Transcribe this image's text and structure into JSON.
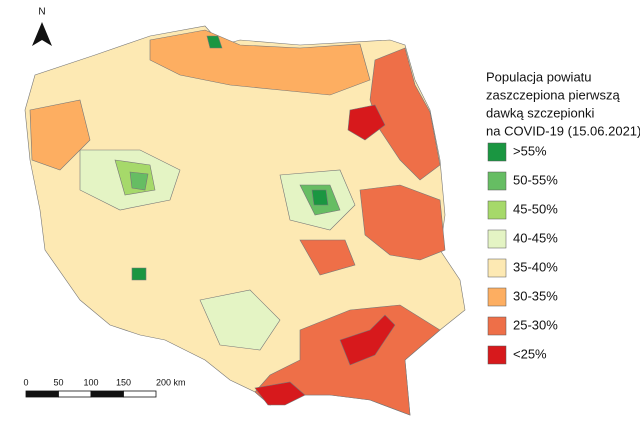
{
  "north": "N",
  "legend": {
    "title": [
      "Populacja powiatu",
      "zaszczepiona pierwszą",
      "dawką szczepionki",
      "na COVID-19 (15.06.2021)"
    ],
    "items": [
      {
        "label": ">55%",
        "color": "#1a9641"
      },
      {
        "label": "50-55%",
        "color": "#66bd63"
      },
      {
        "label": "45-50%",
        "color": "#a6d96a"
      },
      {
        "label": "40-45%",
        "color": "#e4f4c4"
      },
      {
        "label": "35-40%",
        "color": "#fde9b3"
      },
      {
        "label": "30-35%",
        "color": "#fdae61"
      },
      {
        "label": "25-30%",
        "color": "#ee6f48"
      },
      {
        "label": "<25%",
        "color": "#d7191c"
      }
    ]
  },
  "scale_bar": {
    "labels": [
      "0",
      "50",
      "100",
      "150",
      "200 km"
    ]
  }
}
